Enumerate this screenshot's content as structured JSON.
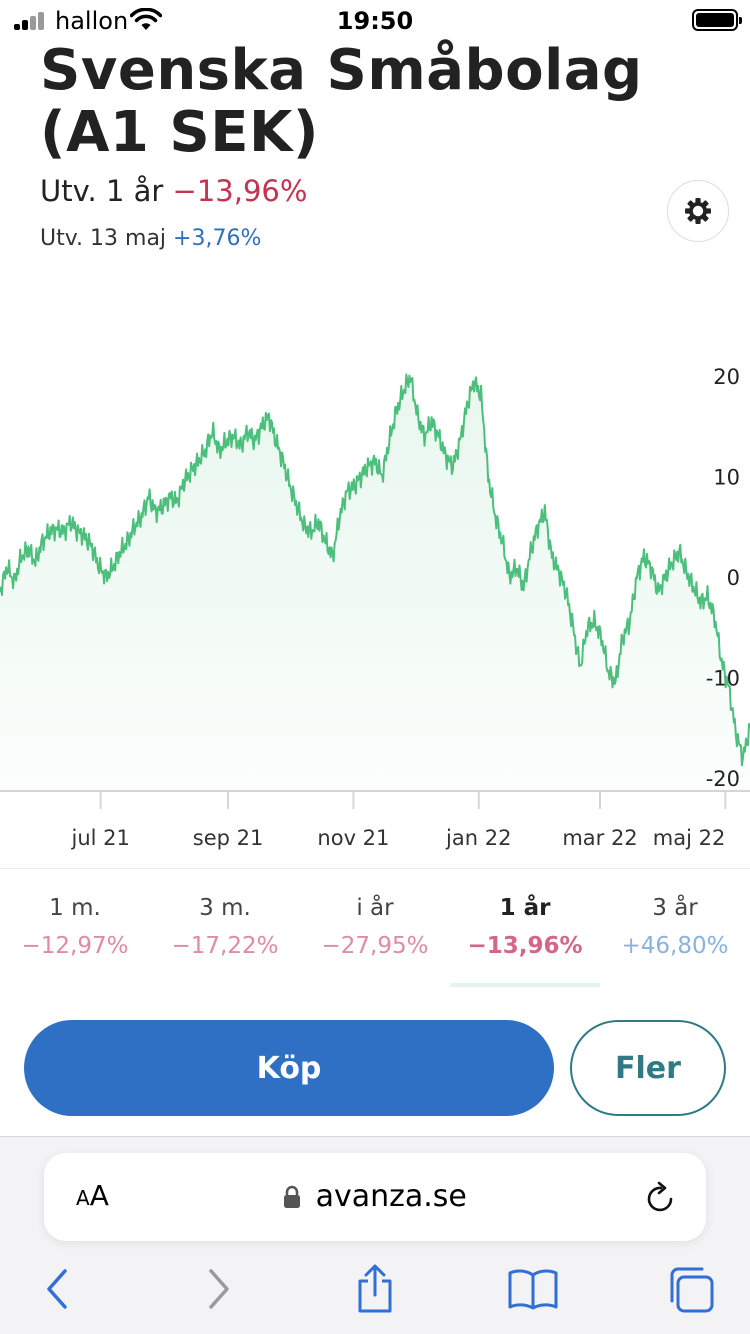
{
  "status_bar": {
    "carrier": "hallon",
    "time": "19:50"
  },
  "header": {
    "title": "Svenska Småbolag (A1 SEK)",
    "change_year_label": "Utv. 1 år",
    "change_year_value": "−13,96%",
    "change_day_label": "Utv. 13 maj",
    "change_day_value": "+3,76%"
  },
  "icons": {
    "settings": "gear-icon",
    "lock": "lock-icon",
    "reload": "reload-icon",
    "back": "chevron-left-icon",
    "forward": "chevron-right-icon",
    "share": "share-icon",
    "bookmarks": "book-icon",
    "tabs": "tabs-icon"
  },
  "colors": {
    "accent": "#3070c4",
    "line": "#4cbf7c",
    "negative": "#c2344f",
    "positive": "#2f6fbf",
    "secondary": "#2f7a84"
  },
  "chart_data": {
    "type": "area",
    "x_tick_labels": [
      "jul 21",
      "sep 21",
      "nov 21",
      "jan 22",
      "mar 22",
      "maj 22"
    ],
    "y_tick_labels": [
      "20",
      "10",
      "0",
      "-10",
      "-20"
    ],
    "ylim": [
      -21,
      21
    ],
    "grid": false,
    "series": [
      {
        "values": [
          -1.5,
          1.0,
          -0.5,
          2.0,
          2.8,
          1.5,
          3.5,
          4.5,
          4.8,
          4.5,
          5.5,
          4.5,
          4.0,
          3.0,
          1.0,
          0.0,
          1.0,
          2.5,
          3.5,
          5.0,
          6.0,
          8.0,
          6.5,
          7.0,
          8.0,
          7.5,
          9.5,
          10.5,
          11.5,
          12.5,
          14.5,
          12.5,
          13.5,
          14.0,
          13.0,
          14.5,
          13.5,
          15.0,
          16.0,
          13.5,
          11.5,
          9.0,
          7.0,
          5.0,
          4.5,
          5.5,
          3.5,
          2.0,
          6.0,
          8.5,
          9.0,
          10.0,
          11.0,
          11.5,
          10.0,
          13.5,
          16.5,
          18.5,
          20.0,
          16.0,
          14.0,
          15.5,
          14.0,
          12.0,
          11.0,
          13.5,
          17.0,
          19.5,
          18.0,
          10.0,
          6.0,
          3.5,
          0.0,
          1.0,
          -1.0,
          2.5,
          5.0,
          6.5,
          2.0,
          0.5,
          -1.5,
          -5.0,
          -9.0,
          -5.0,
          -4.5,
          -6.0,
          -9.5,
          -10.5,
          -6.0,
          -4.5,
          0.0,
          2.0,
          1.0,
          -1.5,
          0.0,
          1.5,
          2.5,
          0.5,
          -1.0,
          -2.5,
          -2.0,
          -4.0,
          -8.5,
          -11.0,
          -15.5,
          -18.0,
          -15.0
        ],
        "start": "2021-05-13",
        "end": "2022-05-13"
      }
    ]
  },
  "periods": [
    {
      "label": "1 m.",
      "value": "−12,97%"
    },
    {
      "label": "3 m.",
      "value": "−17,22%"
    },
    {
      "label": "i år",
      "value": "−27,95%"
    },
    {
      "label": "1 år",
      "value": "−13,96%",
      "active": true
    },
    {
      "label": "3 år",
      "value": "+46,80%"
    }
  ],
  "actions": {
    "buy_label": "Köp",
    "more_label": "Fler"
  },
  "browser": {
    "text_size_small": "A",
    "text_size_big": "A",
    "url": "avanza.se"
  }
}
